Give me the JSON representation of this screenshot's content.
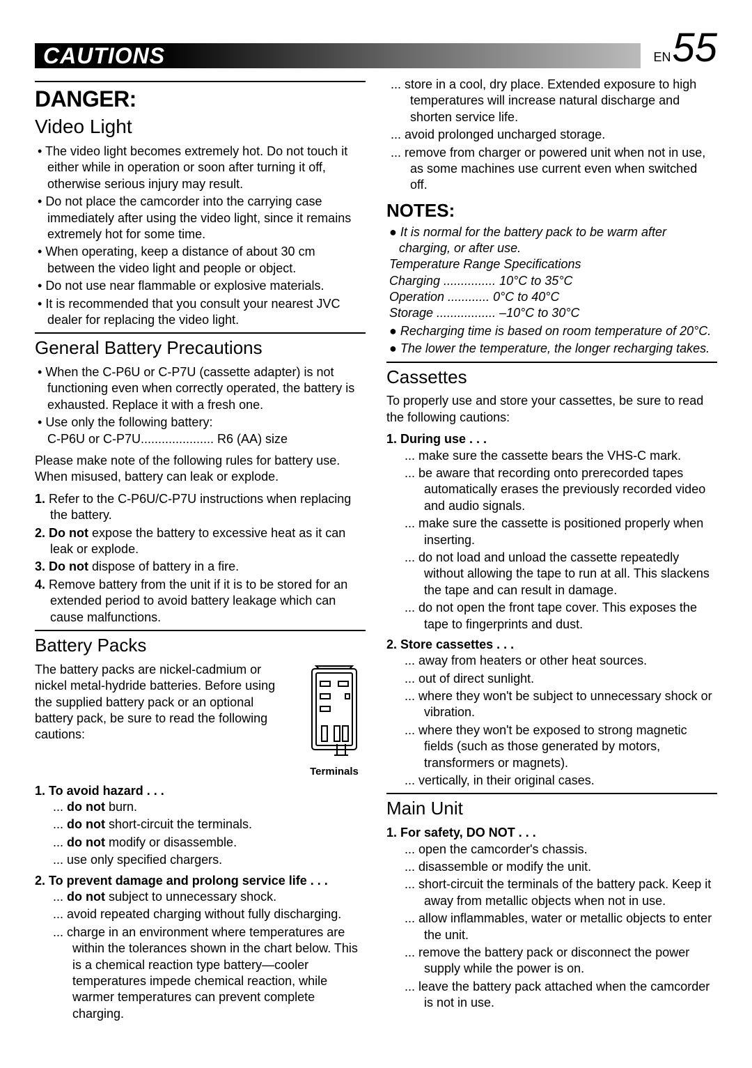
{
  "header": {
    "title": "CAUTIONS",
    "lang": "EN",
    "page": "55"
  },
  "left": {
    "danger": "DANGER:",
    "videoLight": {
      "title": "Video Light",
      "items": [
        "The video light becomes extremely hot. Do not touch it either while in operation or soon after turning it off, otherwise serious injury may result.",
        "Do not place the camcorder into the carrying case immediately after using the video light, since it remains extremely hot for some time.",
        "When operating, keep a distance of about 30 cm between the video light and people or object.",
        "Do not use near flammable or explosive materials.",
        "It is recommended that you consult your nearest JVC dealer for replacing the video light."
      ]
    },
    "genBattery": {
      "title": "General Battery Precautions",
      "bullets": [
        "When the C-P6U or C-P7U (cassette adapter) is not functioning even when correctly operated, the battery is exhausted. Replace it with a fresh one.",
        "Use only the following battery:\nC-P6U or C-P7U..................... R6 (AA) size"
      ],
      "note": "Please make note of the following rules for battery use. When misused, battery can leak or explode.",
      "numbered": [
        "Refer to the C-P6U/C-P7U instructions when replacing the battery.",
        "<b>Do not</b> expose the battery to excessive heat as it can leak or explode.",
        "<b>Do not</b> dispose of battery in a fire.",
        "Remove battery from the unit if it is to be stored for an extended period to avoid battery leakage which can cause malfunctions."
      ]
    },
    "batteryPacks": {
      "title": "Battery Packs",
      "intro": "The battery packs are nickel-cadmium or nickel metal-hydride batteries. Before using the supplied battery pack or an optional battery pack, be sure to read the following cautions:",
      "terminals": "Terminals",
      "sec1": {
        "head": "1. To avoid hazard . . .",
        "items": [
          "<b>do not</b> burn.",
          "<b>do not</b> short-circuit the terminals.",
          "<b>do not</b> modify or disassemble.",
          "use only specified chargers."
        ]
      },
      "sec2": {
        "head": "2. To prevent damage and prolong service life . . .",
        "items": [
          "<b>do not</b> subject to unnecessary shock.",
          "avoid repeated charging without fully discharging.",
          "charge in an environment where temperatures are within the tolerances shown in the chart below. This is a chemical reaction type battery—cooler temperatures impede chemical reaction, while warmer temperatures can prevent complete charging."
        ]
      }
    }
  },
  "right": {
    "cont": [
      "store in a cool, dry place. Extended exposure to high temperatures will increase natural discharge and shorten service life.",
      "avoid prolonged uncharged storage.",
      "remove from charger or powered unit when not in use, as some machines use current even when switched off."
    ],
    "notes": {
      "title": "NOTES:",
      "first": "It is normal for the battery pack to be warm after charging, or after use.",
      "specHead": "Temperature Range Specifications",
      "charging": "Charging ............... 10°C to 35°C",
      "operation": "Operation ............ 0°C to 40°C",
      "storage": "Storage ................. –10°C to 30°C",
      "b2": "Recharging time is based on room temperature of 20°C.",
      "b3": "The lower the temperature, the longer recharging takes."
    },
    "cassettes": {
      "title": "Cassettes",
      "intro": "To properly use and store your cassettes, be sure to read the following cautions:",
      "s1": {
        "head": "1. During use . . .",
        "items": [
          "make sure the cassette bears the VHS-C mark.",
          "be aware that recording onto prerecorded tapes automatically erases the previously recorded video and audio signals.",
          "make sure the cassette is positioned properly when inserting.",
          "do not load and unload the cassette repeatedly without allowing the tape to run at all. This slackens the tape and can result in damage.",
          "do not open the front tape cover. This exposes the tape to fingerprints and dust."
        ]
      },
      "s2": {
        "head": "2. Store cassettes . . .",
        "items": [
          "away from heaters or other heat sources.",
          "out of direct sunlight.",
          "where they won't be subject to unnecessary shock or vibration.",
          "where they won't be exposed to strong magnetic fields (such as those generated by motors, transformers or magnets).",
          "vertically, in their original cases."
        ]
      }
    },
    "mainUnit": {
      "title": "Main Unit",
      "s1": {
        "head": "1. For safety, DO NOT . . .",
        "items": [
          "open the camcorder's chassis.",
          "disassemble or modify the unit.",
          "short-circuit the terminals of the battery pack. Keep it away from metallic objects when not in use.",
          "allow inflammables, water or metallic objects to enter the unit.",
          "remove the battery pack or disconnect the power supply while the power is on.",
          "leave the battery pack attached when the camcorder is not in use."
        ]
      }
    }
  }
}
